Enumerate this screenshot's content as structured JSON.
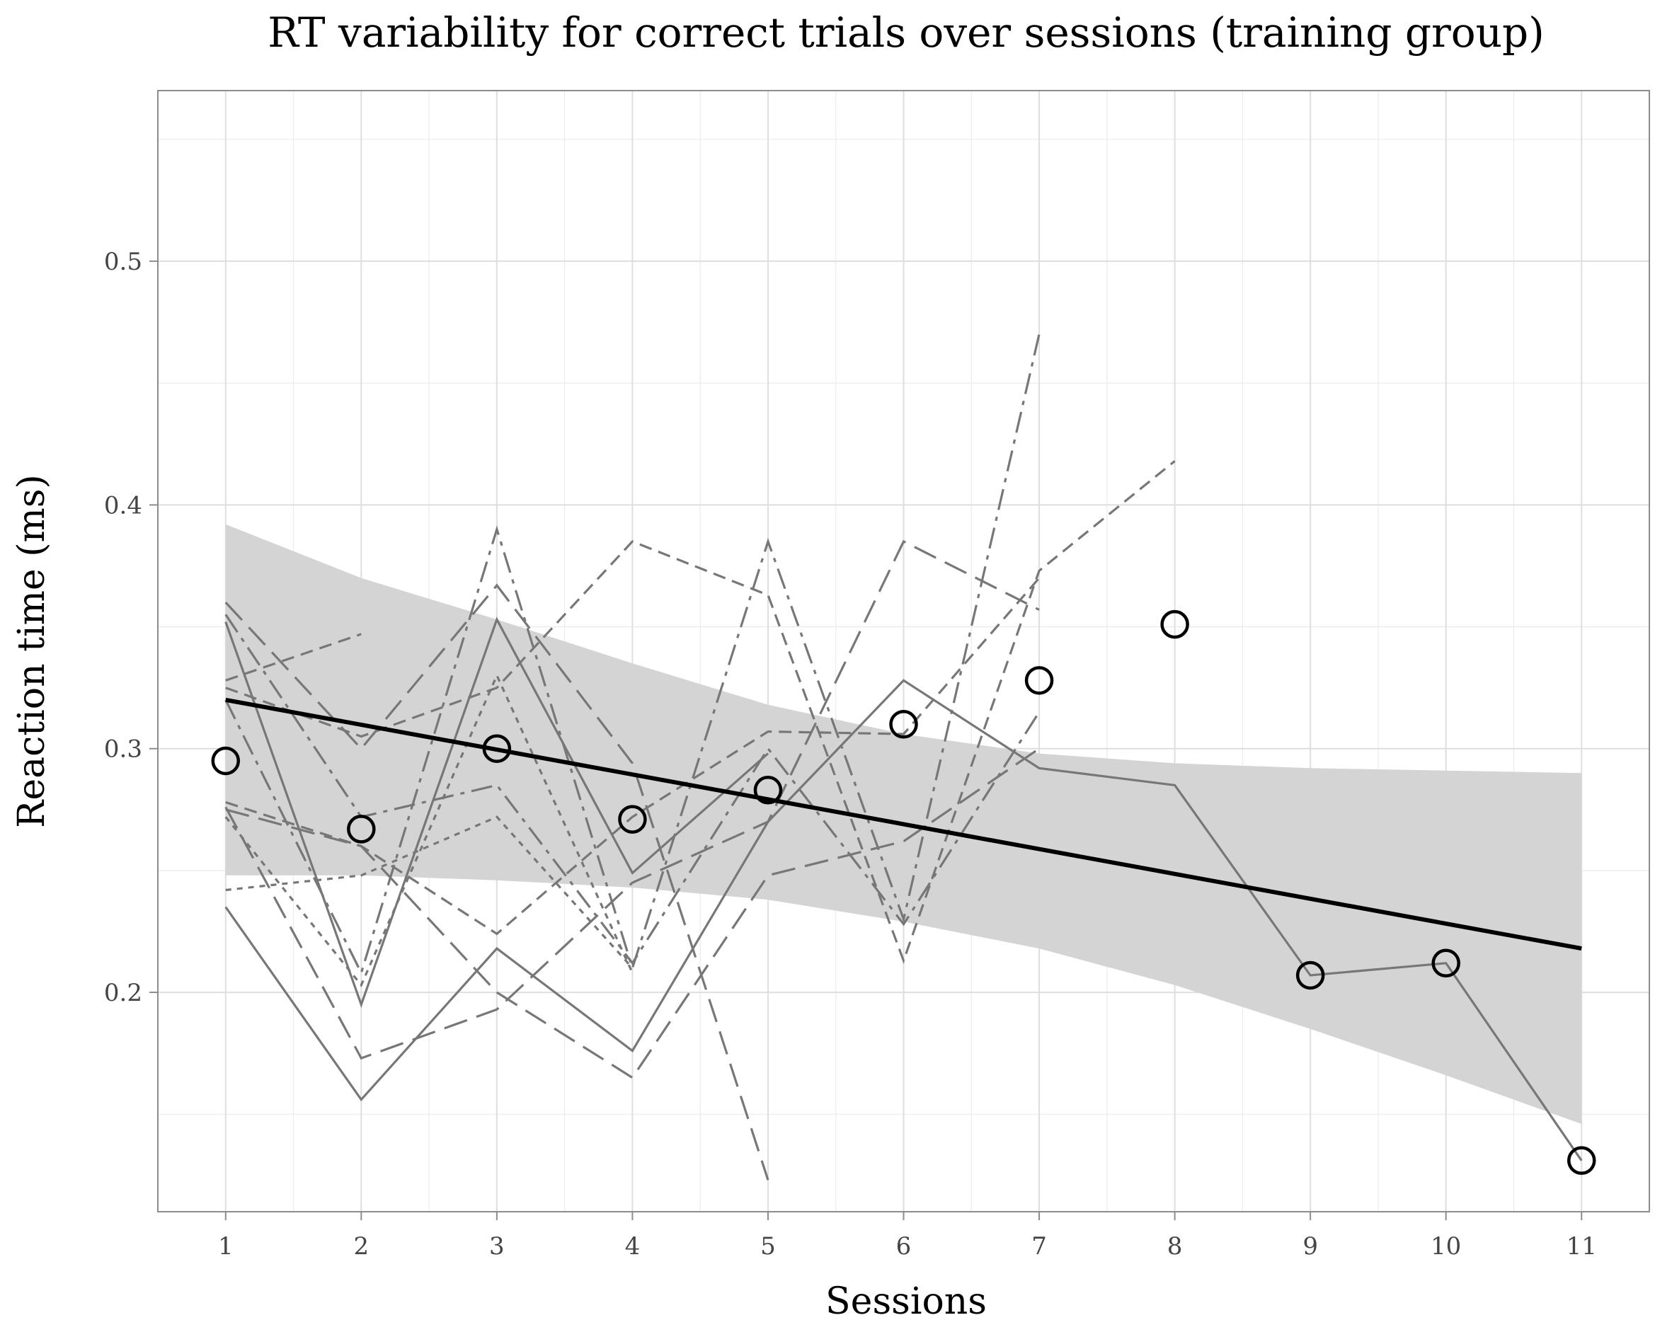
{
  "chart_data": {
    "type": "line",
    "title": "RT variability for correct trials over sessions (training group)",
    "xlabel": "Sessions",
    "ylabel": "Reaction time (ms)",
    "xlim": [
      0.5,
      11.5
    ],
    "ylim": [
      0.11,
      0.57
    ],
    "x_ticks": [
      1,
      2,
      3,
      4,
      5,
      6,
      7,
      8,
      9,
      10,
      11
    ],
    "x_tick_labels": [
      "1",
      "2",
      "3",
      "4",
      "5",
      "6",
      "7",
      "8",
      "9",
      "10",
      "11"
    ],
    "y_ticks": [
      0.2,
      0.3,
      0.4,
      0.5
    ],
    "y_tick_labels": [
      "0.2",
      "0.3",
      "0.4",
      "0.5"
    ],
    "grid": true,
    "legend": "none",
    "colors": {
      "subject_lines": "#777777",
      "ribbon": "#d4d4d4",
      "trend": "#000000",
      "points": "#000000",
      "grid": "#dedede",
      "border": "#8c8c8c"
    },
    "means": {
      "x": [
        1,
        2,
        3,
        4,
        5,
        6,
        7,
        8,
        9,
        10,
        11
      ],
      "y": [
        0.295,
        0.267,
        0.3,
        0.271,
        0.283,
        0.31,
        0.328,
        0.351,
        0.207,
        0.212,
        0.131
      ]
    },
    "trend": {
      "x": [
        1,
        11
      ],
      "y": [
        0.32,
        0.218
      ]
    },
    "confidence_band": {
      "x": [
        1,
        2,
        3,
        4,
        5,
        6,
        7,
        8,
        9,
        10,
        11
      ],
      "lower": [
        0.248,
        0.248,
        0.246,
        0.243,
        0.238,
        0.229,
        0.218,
        0.203,
        0.185,
        0.166,
        0.146
      ],
      "upper": [
        0.392,
        0.37,
        0.353,
        0.335,
        0.318,
        0.306,
        0.298,
        0.294,
        0.292,
        0.291,
        0.29
      ]
    },
    "series": [
      {
        "dash": "",
        "x": [
          1,
          2,
          3,
          4,
          5,
          6,
          7,
          8,
          9,
          10,
          11
        ],
        "y": [
          0.235,
          0.156,
          0.218,
          0.176,
          0.27,
          0.328,
          0.292,
          0.285,
          0.207,
          0.212,
          0.131
        ]
      },
      {
        "dash": "",
        "x": [
          1,
          2,
          3,
          4,
          5
        ],
        "y": [
          0.352,
          0.195,
          0.353,
          0.249,
          0.298
        ]
      },
      {
        "dash": "34,14",
        "x": [
          1,
          2,
          3,
          4,
          5,
          6,
          7
        ],
        "y": [
          0.276,
          0.173,
          0.193,
          0.245,
          0.27,
          0.385,
          0.357
        ]
      },
      {
        "dash": "34,14",
        "x": [
          1,
          2,
          3,
          4,
          5
        ],
        "y": [
          0.36,
          0.3,
          0.367,
          0.294,
          0.123
        ]
      },
      {
        "dash": "34,14",
        "x": [
          1,
          2,
          3,
          4,
          5,
          6,
          7
        ],
        "y": [
          0.275,
          0.26,
          0.2,
          0.165,
          0.248,
          0.262,
          0.3
        ]
      },
      {
        "dash": "18,10",
        "x": [
          1,
          2
        ],
        "y": [
          0.328,
          0.347
        ]
      },
      {
        "dash": "18,10",
        "x": [
          1,
          2,
          3,
          4,
          5,
          6,
          7,
          8
        ],
        "y": [
          0.325,
          0.305,
          0.325,
          0.385,
          0.363,
          0.213,
          0.373,
          0.418
        ]
      },
      {
        "dash": "18,10",
        "x": [
          1,
          2,
          3,
          4,
          5,
          6,
          7
        ],
        "y": [
          0.278,
          0.26,
          0.224,
          0.272,
          0.307,
          0.306,
          0.37
        ]
      },
      {
        "dash": "8,8",
        "x": [
          1,
          2,
          3,
          4
        ],
        "y": [
          0.242,
          0.248,
          0.272,
          0.21
        ]
      },
      {
        "dash": "30,10,6,10",
        "x": [
          1,
          2,
          3,
          4,
          5,
          6,
          7
        ],
        "y": [
          0.32,
          0.208,
          0.39,
          0.21,
          0.385,
          0.23,
          0.47
        ]
      },
      {
        "dash": "30,10,6,10",
        "x": [
          1,
          2,
          3,
          4,
          5,
          6,
          7
        ],
        "y": [
          0.355,
          0.272,
          0.285,
          0.212,
          0.3,
          0.228,
          0.315
        ]
      },
      {
        "dash": "8,8",
        "x": [
          1,
          2,
          3,
          4
        ],
        "y": [
          0.272,
          0.203,
          0.33,
          0.208
        ]
      }
    ]
  }
}
